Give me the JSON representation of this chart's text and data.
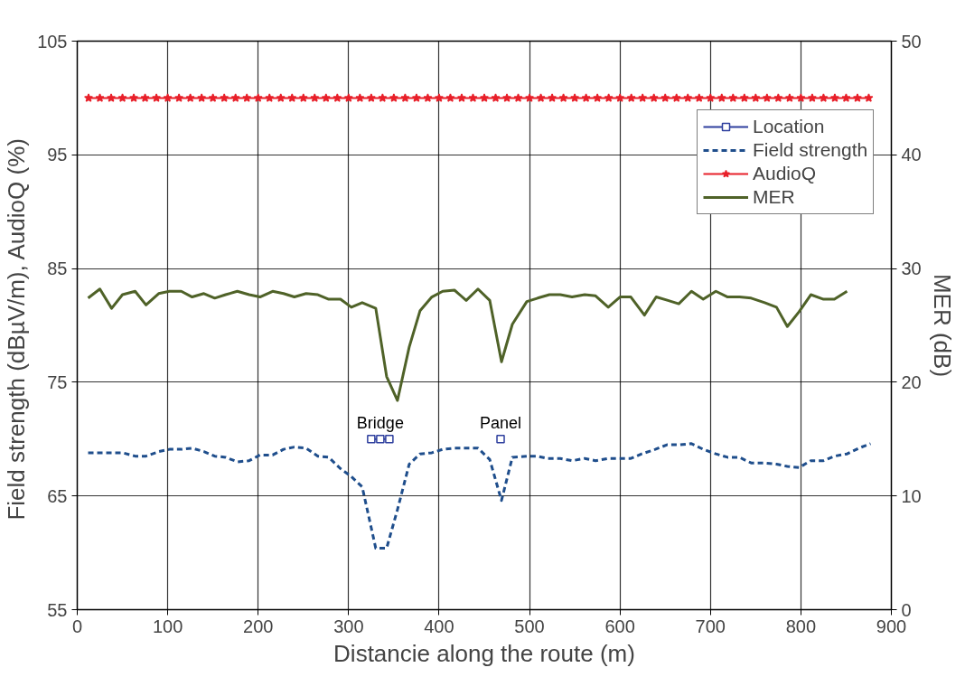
{
  "chart_data": {
    "type": "line",
    "xlabel": "Distancie along the route (m)",
    "ylabel": "Field strength (dBµV/m),  AudioQ (%)",
    "y2label": "MER (dB)",
    "xlim": [
      0,
      900
    ],
    "xticks": [
      0,
      100,
      200,
      300,
      400,
      500,
      600,
      700,
      800,
      900
    ],
    "ylim": [
      55,
      105
    ],
    "yticks": [
      55,
      65,
      75,
      85,
      95,
      105
    ],
    "y2lim": [
      0,
      50
    ],
    "y2ticks": [
      0,
      10,
      20,
      30,
      40,
      50
    ],
    "grid": true,
    "legend": "top right",
    "series": [
      {
        "name": "Location",
        "color": "#2e3f9e",
        "marker": "square",
        "line_style": "solid",
        "x": [
          325,
          335,
          345,
          400,
          468
        ],
        "values": [
          70,
          70,
          70,
          null,
          70
        ],
        "value_labels": [
          null,
          "Bridge",
          null,
          null,
          "Panel"
        ]
      },
      {
        "name": "Field strength",
        "color": "#1f4e8c",
        "marker": "none",
        "line_style": "dashed",
        "x": [
          12,
          25,
          38,
          50,
          64,
          76,
          90,
          102,
          115,
          127,
          140,
          152,
          164,
          177,
          190,
          202,
          216,
          228,
          240,
          253,
          266,
          278,
          291,
          303,
          315,
          330,
          342,
          354,
          367,
          379,
          392,
          404,
          417,
          430,
          443,
          456,
          469,
          481,
          497,
          508,
          520,
          534,
          547,
          561,
          573,
          587,
          600,
          612,
          624,
          639,
          652,
          665,
          679,
          692,
          706,
          719,
          732,
          745,
          760,
          773,
          785,
          798,
          811,
          825,
          837,
          851,
          864,
          877
        ],
        "values": [
          68.8,
          68.8,
          68.8,
          68.8,
          68.5,
          68.5,
          68.9,
          69.1,
          69.1,
          69.2,
          68.9,
          68.5,
          68.4,
          68.0,
          68.1,
          68.6,
          68.6,
          69.1,
          69.3,
          69.2,
          68.5,
          68.4,
          67.4,
          66.7,
          65.8,
          60.4,
          60.4,
          63.8,
          67.8,
          68.7,
          68.8,
          69.1,
          69.2,
          69.2,
          69.2,
          68.2,
          64.6,
          68.4,
          68.5,
          68.5,
          68.3,
          68.3,
          68.1,
          68.3,
          68.1,
          68.3,
          68.3,
          68.3,
          68.7,
          69.1,
          69.5,
          69.5,
          69.6,
          69.1,
          68.7,
          68.4,
          68.4,
          67.9,
          67.9,
          67.8,
          67.6,
          67.5,
          68.1,
          68.1,
          68.5,
          68.7,
          69.2,
          69.6
        ]
      },
      {
        "name": "AudioQ",
        "color": "#e8202a",
        "marker": "star",
        "line_style": "solid",
        "x": [
          12.5,
          25,
          37.5,
          50,
          62.5,
          75,
          87.5,
          100,
          112.5,
          125,
          137.5,
          150,
          162.5,
          175,
          187.5,
          200,
          212.5,
          225,
          237.5,
          250,
          262.5,
          275,
          287.5,
          300,
          312.5,
          325,
          337.5,
          350,
          362.5,
          375,
          387.5,
          400,
          412.5,
          425,
          437.5,
          450,
          462.5,
          475,
          487.5,
          500,
          512.5,
          525,
          537.5,
          550,
          562.5,
          575,
          587.5,
          600,
          612.5,
          625,
          637.5,
          650,
          662.5,
          675,
          687.5,
          700,
          712.5,
          725,
          737.5,
          750,
          762.5,
          775,
          787.5,
          800,
          812.5,
          825,
          837.5,
          850,
          862.5,
          875
        ],
        "values": [
          100,
          100,
          100,
          100,
          100,
          100,
          100,
          100,
          100,
          100,
          100,
          100,
          100,
          100,
          100,
          100,
          100,
          100,
          100,
          100,
          100,
          100,
          100,
          100,
          100,
          100,
          100,
          100,
          100,
          100,
          100,
          100,
          100,
          100,
          100,
          100,
          100,
          100,
          100,
          100,
          100,
          100,
          100,
          100,
          100,
          100,
          100,
          100,
          100,
          100,
          100,
          100,
          100,
          100,
          100,
          100,
          100,
          100,
          100,
          100,
          100,
          100,
          100,
          100,
          100,
          100,
          100,
          100,
          100,
          100
        ]
      },
      {
        "name": "MER",
        "color": "#4f6228",
        "marker": "none",
        "line_style": "solid",
        "axis": "y2",
        "x": [
          12,
          25,
          38,
          50,
          64,
          76,
          90,
          102,
          115,
          127,
          140,
          152,
          164,
          177,
          190,
          202,
          216,
          228,
          240,
          253,
          266,
          278,
          291,
          303,
          315,
          330,
          342,
          354,
          367,
          379,
          392,
          404,
          417,
          430,
          443,
          456,
          469,
          481,
          497,
          509,
          522,
          534,
          547,
          561,
          573,
          587,
          600,
          612,
          627,
          640,
          653,
          665,
          679,
          692,
          706,
          719,
          732,
          745,
          760,
          773,
          785,
          798,
          811,
          825,
          837,
          851
        ],
        "values": [
          27.4,
          28.2,
          26.5,
          27.7,
          28.0,
          26.8,
          27.8,
          28.0,
          28.0,
          27.5,
          27.8,
          27.4,
          27.7,
          28.0,
          27.7,
          27.5,
          28.0,
          27.8,
          27.5,
          27.8,
          27.7,
          27.3,
          27.3,
          26.6,
          27.0,
          26.5,
          20.5,
          18.4,
          23.1,
          26.3,
          27.5,
          28.0,
          28.1,
          27.2,
          28.2,
          27.2,
          21.8,
          25.1,
          27.1,
          27.4,
          27.7,
          27.7,
          27.5,
          27.7,
          27.6,
          26.6,
          27.5,
          27.5,
          25.9,
          27.5,
          27.2,
          26.9,
          28.0,
          27.3,
          28.0,
          27.5,
          27.5,
          27.4,
          27.0,
          26.6,
          24.9,
          26.2,
          27.7,
          27.3,
          27.3,
          28.0
        ]
      }
    ]
  }
}
